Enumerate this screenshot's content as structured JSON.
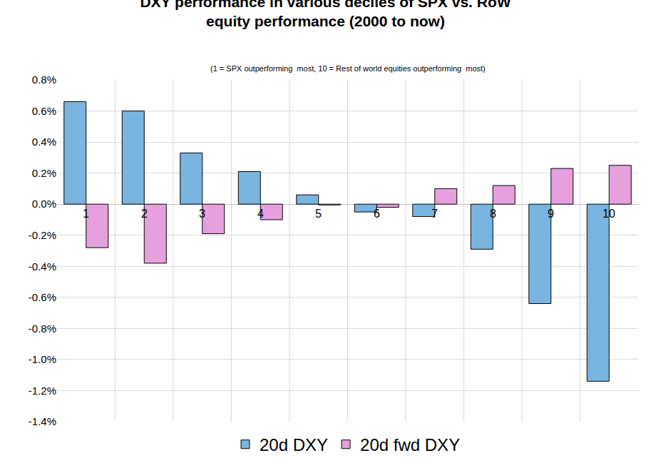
{
  "chart_data": {
    "type": "bar",
    "title": [
      "DXY performance in various deciles of SPX vs. RoW",
      "equity performance (2000 to now)"
    ],
    "subtitle": "(1 = SPX outperforming  most, 10 = Rest of world equities outperforming  most)",
    "categories": [
      "1",
      "2",
      "3",
      "4",
      "5",
      "6",
      "7",
      "8",
      "9",
      "10"
    ],
    "series": [
      {
        "name": "20d DXY",
        "color": "#7AB4E0",
        "values": [
          0.66,
          0.6,
          0.33,
          0.21,
          0.06,
          -0.05,
          -0.08,
          -0.29,
          -0.64,
          -1.14
        ]
      },
      {
        "name": "20d fwd DXY",
        "color": "#E6A0DE",
        "values": [
          -0.28,
          -0.38,
          -0.19,
          -0.1,
          -0.005,
          -0.02,
          0.1,
          0.12,
          0.23,
          0.25
        ]
      }
    ],
    "ylim": [
      -1.4,
      0.8
    ],
    "yticks": [
      {
        "value": -1.4,
        "label": "-1.4%"
      },
      {
        "value": -1.2,
        "label": "-1.2%"
      },
      {
        "value": -1.0,
        "label": "-1.0%"
      },
      {
        "value": -0.8,
        "label": "-0.8%"
      },
      {
        "value": -0.6,
        "label": "-0.6%"
      },
      {
        "value": -0.4,
        "label": "-0.4%"
      },
      {
        "value": -0.2,
        "label": "-0.2%"
      },
      {
        "value": 0,
        "label": "0.0%"
      },
      {
        "value": 0.2,
        "label": "0.2%"
      },
      {
        "value": 0.4,
        "label": "0.4%"
      },
      {
        "value": 0.6,
        "label": "0.6%"
      },
      {
        "value": 0.8,
        "label": "0.8%"
      }
    ],
    "grid": true,
    "legend": "bottom"
  }
}
